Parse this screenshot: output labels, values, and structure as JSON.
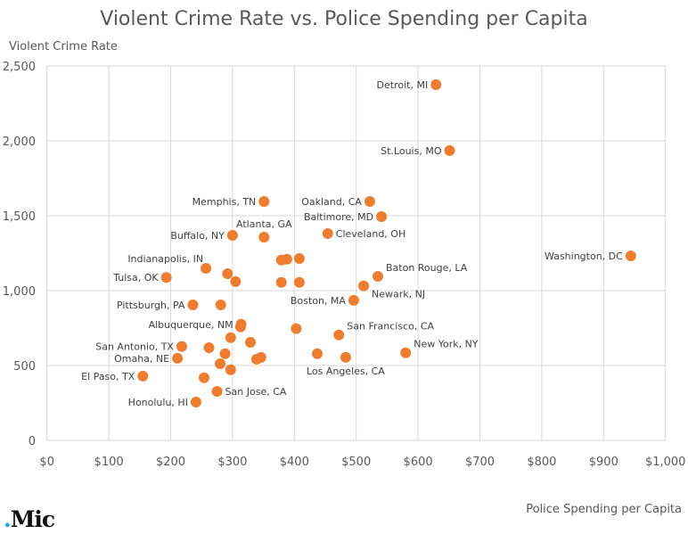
{
  "chart_data": {
    "type": "scatter",
    "title": "Violent Crime Rate vs. Police Spending per Capita",
    "xlabel": "Police Spending per Capita",
    "ylabel": "Violent Crime Rate",
    "xlim": [
      0,
      1000
    ],
    "ylim": [
      0,
      2500
    ],
    "x_ticks": [
      "$0",
      "$100",
      "$200",
      "$300",
      "$400",
      "$500",
      "$600",
      "$700",
      "$800",
      "$900",
      "$1,000"
    ],
    "y_ticks": [
      "0",
      "500",
      "1,000",
      "1,500",
      "2,000",
      "2,500"
    ],
    "grid": true,
    "marker_color": "#ED7D31",
    "points": [
      {
        "x": 629,
        "y": 2375,
        "label": "Detroit, MI",
        "label_pos": "left"
      },
      {
        "x": 651,
        "y": 1935,
        "label": "St.Louis, MO",
        "label_pos": "left"
      },
      {
        "x": 351,
        "y": 1595,
        "label": "Memphis, TN",
        "label_pos": "left"
      },
      {
        "x": 522,
        "y": 1595,
        "label": "Oakland, CA",
        "label_pos": "left"
      },
      {
        "x": 541,
        "y": 1494,
        "label": "Baltimore, MD",
        "label_pos": "left"
      },
      {
        "x": 944,
        "y": 1232,
        "label": "Washington, DC",
        "label_pos": "left"
      },
      {
        "x": 300,
        "y": 1369,
        "label": "Buffalo, NY",
        "label_pos": "left"
      },
      {
        "x": 351,
        "y": 1357,
        "label": "Atlanta, GA",
        "label_pos": "top"
      },
      {
        "x": 454,
        "y": 1381,
        "label": "Cleveland, OH",
        "label_pos": "right"
      },
      {
        "x": 257,
        "y": 1149,
        "label": "Indianapolis, IN",
        "label_pos": "top-left"
      },
      {
        "x": 292,
        "y": 1113,
        "label": ""
      },
      {
        "x": 305,
        "y": 1060,
        "label": ""
      },
      {
        "x": 379,
        "y": 1204,
        "label": ""
      },
      {
        "x": 388,
        "y": 1210,
        "label": ""
      },
      {
        "x": 408,
        "y": 1214,
        "label": ""
      },
      {
        "x": 379,
        "y": 1055,
        "label": ""
      },
      {
        "x": 408,
        "y": 1055,
        "label": ""
      },
      {
        "x": 193,
        "y": 1088,
        "label": "Tulsa, OK",
        "label_pos": "left"
      },
      {
        "x": 535,
        "y": 1095,
        "label": "Baton Rouge, LA",
        "label_pos": "top-right"
      },
      {
        "x": 512,
        "y": 1032,
        "label": "Newark, NJ",
        "label_pos": "bottom-right"
      },
      {
        "x": 496,
        "y": 935,
        "label": "Boston, MA",
        "label_pos": "left"
      },
      {
        "x": 236,
        "y": 905,
        "label": "Pittsburgh, PA",
        "label_pos": "left"
      },
      {
        "x": 281,
        "y": 905,
        "label": ""
      },
      {
        "x": 314,
        "y": 775,
        "label": "Albuquerque, NM",
        "label_pos": "left"
      },
      {
        "x": 313,
        "y": 758,
        "label": ""
      },
      {
        "x": 403,
        "y": 746,
        "label": ""
      },
      {
        "x": 472,
        "y": 704,
        "label": "San Francisco, CA",
        "label_pos": "top-right"
      },
      {
        "x": 297,
        "y": 686,
        "label": ""
      },
      {
        "x": 329,
        "y": 655,
        "label": ""
      },
      {
        "x": 218,
        "y": 627,
        "label": "San Antonio, TX",
        "label_pos": "left"
      },
      {
        "x": 262,
        "y": 619,
        "label": ""
      },
      {
        "x": 288,
        "y": 579,
        "label": ""
      },
      {
        "x": 437,
        "y": 579,
        "label": ""
      },
      {
        "x": 211,
        "y": 548,
        "label": "Omaha, NE",
        "label_pos": "left"
      },
      {
        "x": 339,
        "y": 542,
        "label": ""
      },
      {
        "x": 346,
        "y": 554,
        "label": ""
      },
      {
        "x": 483,
        "y": 555,
        "label": "Los Angeles, CA",
        "label_pos": "bottom"
      },
      {
        "x": 580,
        "y": 585,
        "label": "New York, NY",
        "label_pos": "top-right"
      },
      {
        "x": 280,
        "y": 512,
        "label": ""
      },
      {
        "x": 297,
        "y": 472,
        "label": ""
      },
      {
        "x": 155,
        "y": 429,
        "label": "El Paso, TX",
        "label_pos": "left"
      },
      {
        "x": 254,
        "y": 418,
        "label": ""
      },
      {
        "x": 275,
        "y": 327,
        "label": "San Jose, CA",
        "label_pos": "right"
      },
      {
        "x": 241,
        "y": 256,
        "label": "Honolulu, HI",
        "label_pos": "left"
      }
    ]
  },
  "logo": {
    "dot": ".",
    "text": "Mic"
  }
}
